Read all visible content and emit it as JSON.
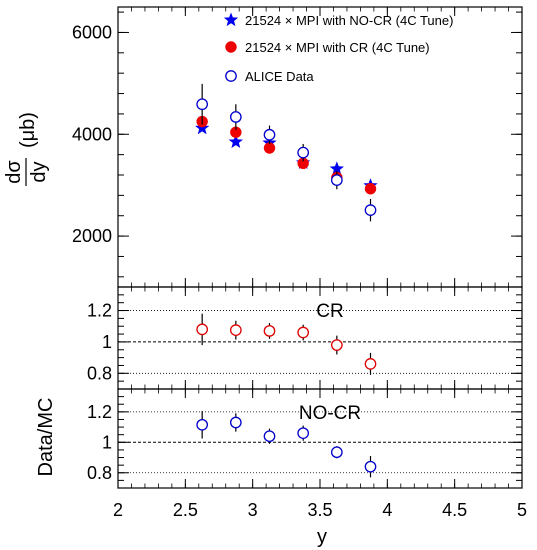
{
  "chart_data": {
    "type": "scatter",
    "x_axis": {
      "label": "y",
      "range": [
        2,
        5
      ],
      "ticks": [
        "2",
        "2.5",
        "3",
        "3.5",
        "4",
        "4.5",
        "5"
      ]
    },
    "panels": [
      {
        "id": "main",
        "ylabel_num": "dσ",
        "ylabel_den": "dy",
        "ylabel_unit": "(μb)",
        "ylim": [
          1000,
          6500
        ],
        "ticks": [
          2000,
          4000,
          6000
        ],
        "tick_labels": [
          "2000",
          "4000",
          "6000"
        ],
        "legend": [
          {
            "marker": "star",
            "color": "#0000ee",
            "text": "21524 × MPI with NO-CR (4C Tune)"
          },
          {
            "marker": "filled-circle",
            "color": "#ee0000",
            "text": "21524 × MPI with CR (4C Tune)"
          },
          {
            "marker": "open-circle",
            "color": "#0000cc",
            "text": "ALICE Data"
          }
        ],
        "series": [
          {
            "name": "21524 × MPI with NO-CR (4C Tune)",
            "marker": "star",
            "color": "#0000ee",
            "x": [
              2.625,
              2.875,
              3.125,
              3.375,
              3.625,
              3.875
            ],
            "y": [
              4120,
              3850,
              3830,
              3440,
              3320,
              2990
            ]
          },
          {
            "name": "21524 × MPI with CR (4C Tune)",
            "marker": "filled-circle",
            "color": "#ee0000",
            "x": [
              2.625,
              2.875,
              3.125,
              3.375,
              3.625,
              3.875
            ],
            "y": [
              4250,
              4040,
              3730,
              3430,
              3150,
              2930
            ]
          },
          {
            "name": "ALICE Data",
            "marker": "open-circle",
            "color": "#0000cc",
            "x": [
              2.625,
              2.875,
              3.125,
              3.375,
              3.625,
              3.875
            ],
            "y": [
              4590,
              4340,
              3990,
              3640,
              3100,
              2510
            ],
            "err": [
              400,
              250,
              180,
              170,
              180,
              220
            ]
          }
        ]
      },
      {
        "id": "ratio-cr",
        "label": "CR",
        "ylim": [
          0.7,
          1.35
        ],
        "ticks": [
          0.8,
          1.0,
          1.2
        ],
        "tick_labels": [
          "0.8",
          "1",
          "1.2"
        ],
        "series": [
          {
            "marker": "open-circle",
            "color": "#dd0000",
            "x": [
              2.625,
              2.875,
              3.125,
              3.375,
              3.625,
              3.875
            ],
            "y": [
              1.08,
              1.075,
              1.07,
              1.06,
              0.98,
              0.86
            ],
            "err": [
              0.1,
              0.06,
              0.05,
              0.05,
              0.06,
              0.07
            ]
          }
        ]
      },
      {
        "id": "ratio-nocr",
        "label": "NO-CR",
        "ylabel": "Data/MC",
        "ylim": [
          0.7,
          1.35
        ],
        "ticks": [
          0.8,
          1.0,
          1.2
        ],
        "tick_labels": [
          "0.8",
          "1",
          "1.2"
        ],
        "series": [
          {
            "marker": "open-circle",
            "color": "#0000cc",
            "x": [
              2.625,
              2.875,
              3.125,
              3.375,
              3.625,
              3.875
            ],
            "y": [
              1.115,
              1.13,
              1.04,
              1.06,
              0.935,
              0.84
            ],
            "err": [
              0.09,
              0.06,
              0.05,
              0.05,
              0.04,
              0.07
            ]
          }
        ]
      }
    ]
  }
}
